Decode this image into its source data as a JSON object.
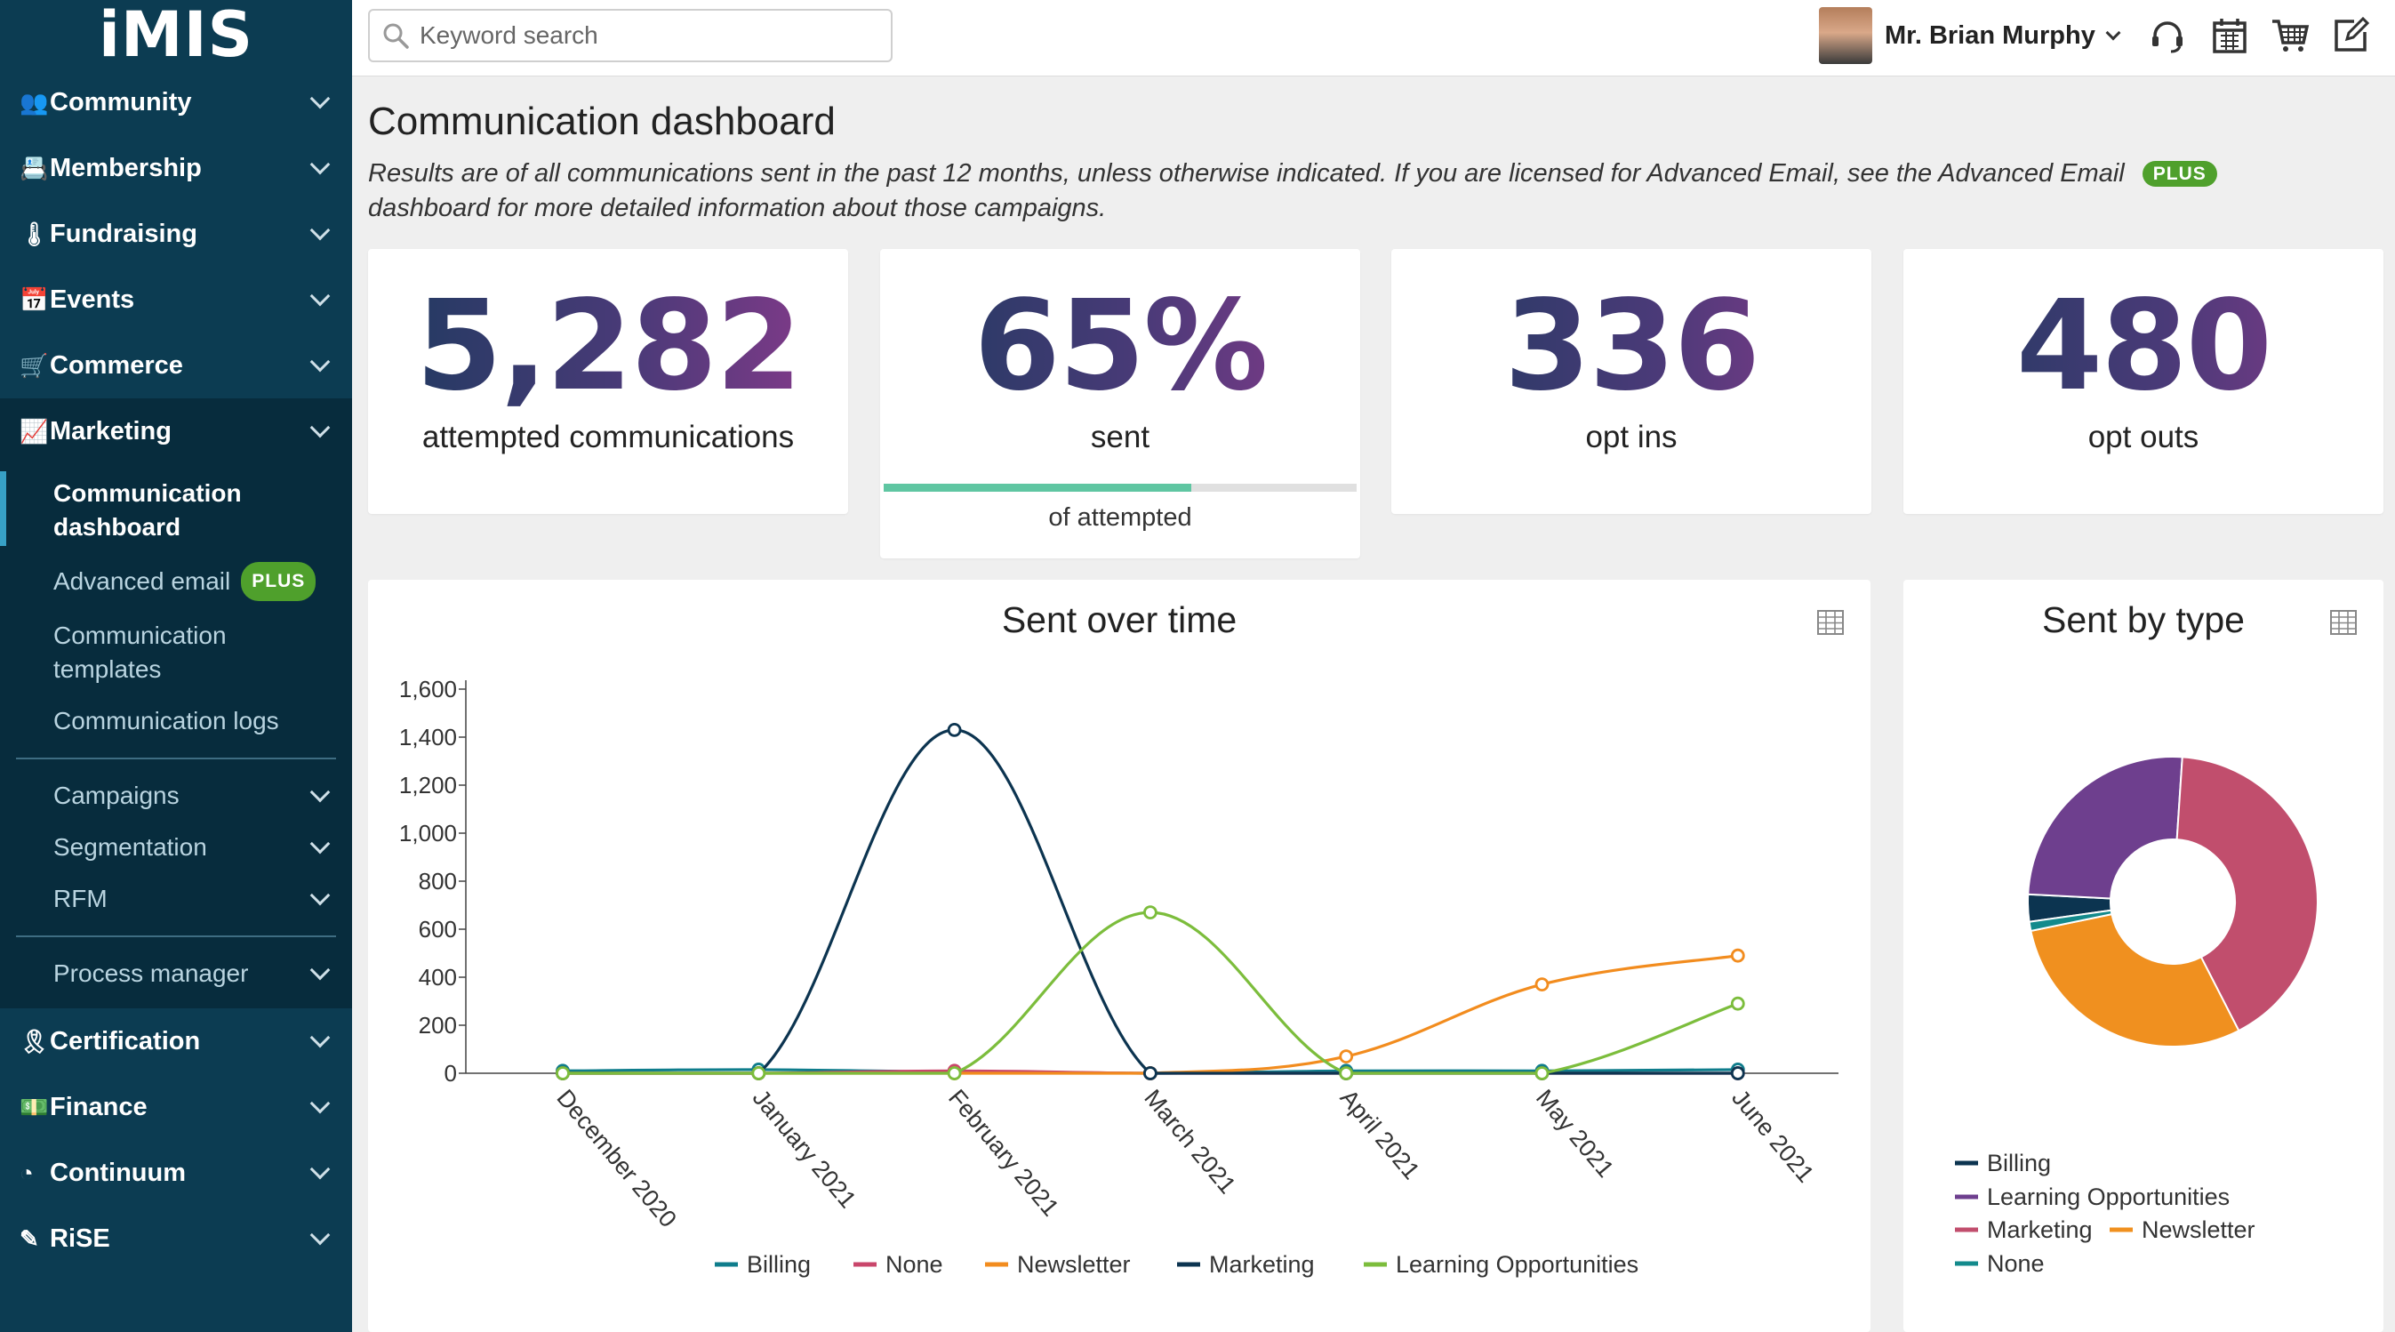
{
  "brand": {
    "logo": "iMIS"
  },
  "sidebar": {
    "items": [
      {
        "label": "Community",
        "icon": "community-icon"
      },
      {
        "label": "Membership",
        "icon": "id-card-icon"
      },
      {
        "label": "Fundraising",
        "icon": "thermometer-icon"
      },
      {
        "label": "Events",
        "icon": "calendar-icon"
      },
      {
        "label": "Commerce",
        "icon": "register-icon"
      },
      {
        "label": "Marketing",
        "icon": "chart-line-icon"
      }
    ],
    "marketing_sub": [
      {
        "label": "Communication dashboard"
      },
      {
        "label": "Advanced email",
        "badge": "PLUS"
      },
      {
        "label": "Communication templates"
      },
      {
        "label": "Communication logs"
      }
    ],
    "marketing_sub2": [
      {
        "label": "Campaigns"
      },
      {
        "label": "Segmentation"
      },
      {
        "label": "RFM"
      }
    ],
    "marketing_sub3": [
      {
        "label": "Process manager"
      }
    ],
    "items_after": [
      {
        "label": "Certification",
        "icon": "ribbon-icon"
      },
      {
        "label": "Finance",
        "icon": "money-icon"
      },
      {
        "label": "Continuum",
        "icon": "pie-icon"
      },
      {
        "label": "RiSE",
        "icon": "edit-icon"
      }
    ]
  },
  "topbar": {
    "search_placeholder": "Keyword search",
    "user_name": "Mr. Brian Murphy",
    "icons": [
      "headset-icon",
      "calendar-icon",
      "cart-icon",
      "edit-icon"
    ]
  },
  "page": {
    "title": "Communication dashboard",
    "description": "Results are of all communications sent in the past 12 months, unless otherwise indicated. If you are licensed for Advanced Email, see the Advanced Email",
    "description_badge": "PLUS",
    "description_end": "dashboard for more detailed information about those campaigns."
  },
  "stats": {
    "attempted": {
      "value": "5,282",
      "label": "attempted communications"
    },
    "sent": {
      "value": "65%",
      "label": "sent",
      "caption": "of attempted",
      "progress": 0.65
    },
    "opt_ins": {
      "value": "336",
      "label": "opt ins"
    },
    "opt_outs": {
      "value": "480",
      "label": "opt outs"
    }
  },
  "colors": {
    "accent": "#4fa02c",
    "billing": "#0f7d8c",
    "none": "#c9466b",
    "newsletter": "#f28c1e",
    "marketing": "#0c3450",
    "learning": "#7cbd3c",
    "donut_billing": "#0c3450",
    "donut_learning": "#6e3f8e",
    "donut_marketing": "#c14e6d",
    "donut_newsletter": "#f0901f",
    "donut_none": "#138a8c"
  },
  "chart_data": [
    {
      "type": "line",
      "title": "Sent over time",
      "x": [
        "December 2020",
        "January 2021",
        "February 2021",
        "March 2021",
        "April 2021",
        "May 2021",
        "June 2021"
      ],
      "ylim": [
        0,
        1600
      ],
      "yticks": [
        "0",
        "200",
        "400",
        "600",
        "800",
        "1,000",
        "1,200",
        "1,400",
        "1,600"
      ],
      "legend_position": "bottom",
      "series": [
        {
          "name": "Billing",
          "values": [
            10,
            15,
            5,
            0,
            10,
            10,
            15
          ]
        },
        {
          "name": "None",
          "values": [
            0,
            0,
            10,
            0,
            0,
            0,
            0
          ]
        },
        {
          "name": "Newsletter",
          "values": [
            0,
            0,
            0,
            0,
            70,
            370,
            490
          ]
        },
        {
          "name": "Marketing",
          "values": [
            0,
            0,
            1430,
            0,
            0,
            0,
            0
          ]
        },
        {
          "name": "Learning Opportunities",
          "values": [
            0,
            0,
            0,
            670,
            0,
            0,
            290
          ]
        }
      ]
    },
    {
      "type": "pie",
      "title": "Sent by type",
      "legend_position": "bottom",
      "labels": [
        "Billing",
        "Learning Opportunities",
        "Marketing",
        "Newsletter",
        "None"
      ],
      "values": [
        3,
        25,
        41,
        29,
        1
      ]
    }
  ]
}
